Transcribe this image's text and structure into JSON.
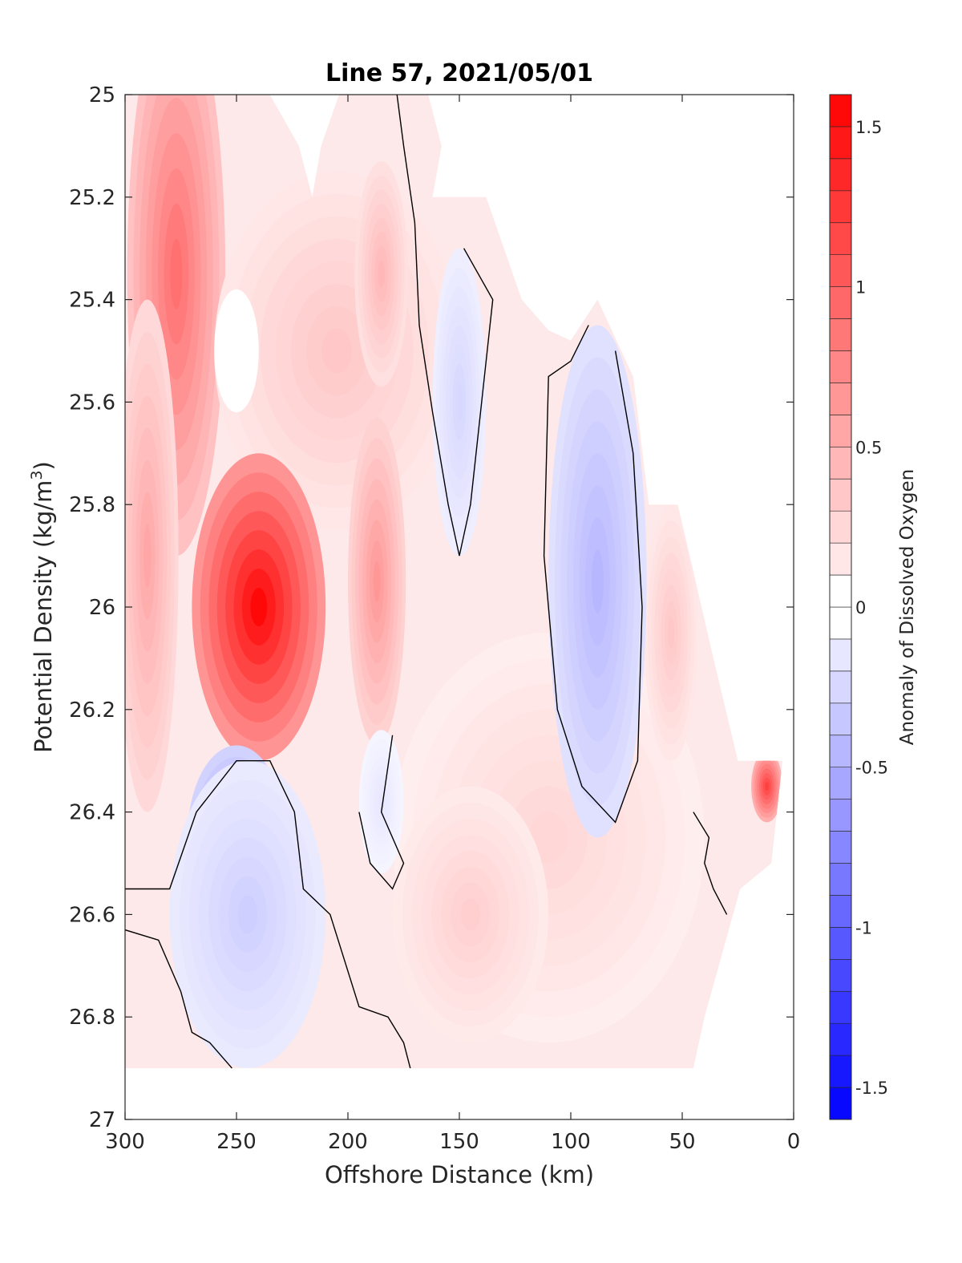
{
  "chart_data": {
    "type": "heatmap",
    "title": "Line 57, 2021/05/01",
    "xlabel": "Offshore Distance (km)",
    "ylabel_main": "Potential Density (kg/m",
    "ylabel_sup": "3",
    "ylabel_close": ")",
    "colorbar_label": "Anomaly of Dissolved Oxygen",
    "xlim": [
      300,
      0
    ],
    "ylim": [
      25,
      27
    ],
    "x_reversed": true,
    "y_reversed": true,
    "xticks": [
      300,
      250,
      200,
      150,
      100,
      50,
      0
    ],
    "xtick_labels": [
      "300",
      "250",
      "200",
      "150",
      "100",
      "50",
      "0"
    ],
    "yticks": [
      25,
      25.2,
      25.4,
      25.6,
      25.8,
      26,
      26.2,
      26.4,
      26.6,
      26.8,
      27
    ],
    "ytick_labels": [
      "25",
      "25.2",
      "25.4",
      "25.6",
      "25.8",
      "26",
      "26.2",
      "26.4",
      "26.6",
      "26.8",
      "27"
    ],
    "clim": [
      -1.6,
      1.6
    ],
    "colorbar_step": 0.1,
    "colorbar_ticks": [
      -1.5,
      -1,
      -0.5,
      0,
      0.5,
      1,
      1.5
    ],
    "colorbar_tick_labels": [
      "-1.5",
      "-1",
      "-0.5",
      "0",
      "0.5",
      "1",
      "1.5"
    ],
    "colormap": {
      "negative": "#0000ff",
      "zero": "#ffffff",
      "positive": "#ff0000"
    },
    "zero_contour_color": "#000000",
    "data_domain": {
      "description": "valid data region in (distance km, density)",
      "x_grid": [
        300,
        290,
        280,
        270,
        260,
        250,
        240,
        230,
        220,
        210,
        200,
        190,
        180,
        170,
        160,
        150,
        140,
        130,
        120,
        110,
        100,
        90,
        80,
        70,
        60,
        50,
        40,
        30,
        20,
        10,
        5
      ]
    },
    "features": [
      {
        "name": "max-oxygen-core",
        "x": 240,
        "y": 26.0,
        "value": 1.55
      },
      {
        "name": "offshore-surface-high",
        "x": 275,
        "y": 25.15,
        "value": 0.95
      },
      {
        "name": "mid-high-190",
        "x": 188,
        "y": 25.95,
        "value": 0.7
      },
      {
        "name": "deep-low-250",
        "x": 248,
        "y": 26.45,
        "value": -0.65
      },
      {
        "name": "deep-low-240",
        "x": 240,
        "y": 26.72,
        "value": -0.55
      },
      {
        "name": "nearshore-low-85",
        "x": 90,
        "y": 25.9,
        "value": -0.5
      },
      {
        "name": "upper-low-150",
        "x": 148,
        "y": 25.6,
        "value": -0.3
      },
      {
        "name": "nearshore-high-12",
        "x": 12,
        "y": 26.35,
        "value": 1.2
      }
    ]
  }
}
